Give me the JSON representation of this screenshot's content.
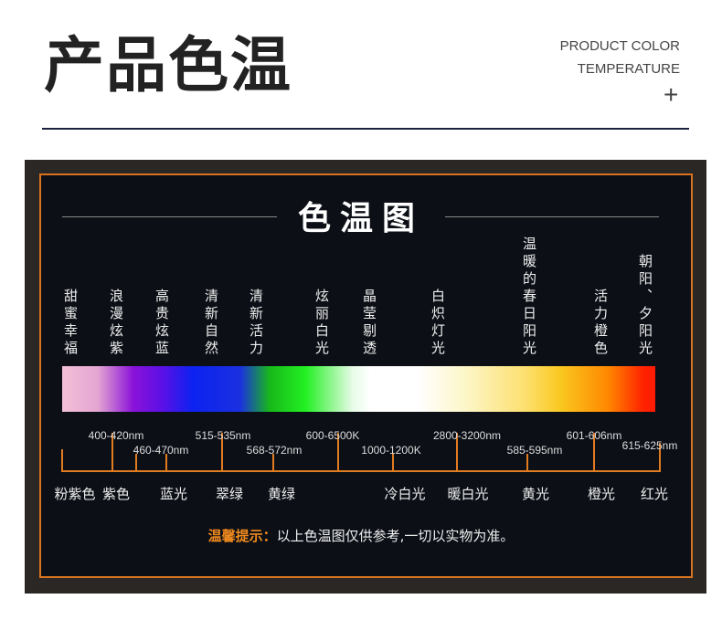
{
  "header": {
    "title": "产品色温",
    "subtitle_line1": "PRODUCT COLOR",
    "subtitle_line2": "TEMPERATURE",
    "plus": "+"
  },
  "chart": {
    "title": "色温图",
    "moods": [
      "甜蜜幸福",
      "浪漫炫紫",
      "高贵炫蓝",
      "清新自然",
      "清新活力",
      "炫丽白光",
      "晶莹剔透",
      "白炽灯光",
      "温暖的春日阳光",
      "活力橙色",
      "朝阳、夕阳光"
    ],
    "ranges_upper": [
      "400-420nm",
      "515-535nm",
      "600-6500K",
      "2800-3200nm",
      "601-606nm",
      "615-625nm"
    ],
    "ranges_lower": [
      "460-470nm",
      "568-572nm",
      "1000-1200K",
      "585-595nm"
    ],
    "light_names": [
      "粉紫色",
      "紫色",
      "蓝光",
      "翠绿",
      "黄绿",
      "冷白光",
      "暖白光",
      "黄光",
      "橙光",
      "红光"
    ],
    "gradient_colors": [
      "#f4bfd8",
      "#8a12d8",
      "#0c22f0",
      "#22f022",
      "#ffffff",
      "#fde070",
      "#ff8800",
      "#ff1a00"
    ]
  },
  "tip": {
    "label": "温馨提示：",
    "text": "以上色温图仅供参考,一切以实物为准。"
  },
  "colors": {
    "accent": "#d9731f",
    "panel": "#0c0f16"
  }
}
